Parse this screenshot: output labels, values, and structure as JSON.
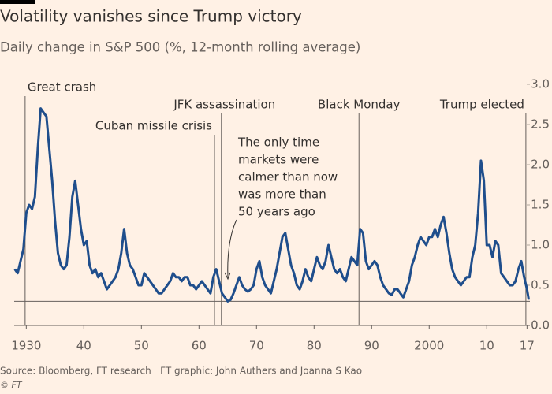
{
  "chart_data": {
    "type": "line",
    "title": "Volatility vanishes since Trump victory",
    "subtitle": "Daily change in S&P 500 (%, 12-month rolling average)",
    "x": [
      1928,
      1928.5,
      1929,
      1929.5,
      1930,
      1930.5,
      1931,
      1931.5,
      1932,
      1932.5,
      1933,
      1933.5,
      1934,
      1934.5,
      1935,
      1935.5,
      1936,
      1936.5,
      1937,
      1937.5,
      1938,
      1938.5,
      1939,
      1939.5,
      1940,
      1940.5,
      1941,
      1941.5,
      1942,
      1942.5,
      1943,
      1943.5,
      1944,
      1944.5,
      1945,
      1945.5,
      1946,
      1946.5,
      1947,
      1947.5,
      1948,
      1948.5,
      1949,
      1949.5,
      1950,
      1950.5,
      1951,
      1951.5,
      1952,
      1952.5,
      1953,
      1953.5,
      1954,
      1954.5,
      1955,
      1955.5,
      1956,
      1956.5,
      1957,
      1957.5,
      1958,
      1958.5,
      1959,
      1959.5,
      1960,
      1960.5,
      1961,
      1961.5,
      1962,
      1962.5,
      1963,
      1963.5,
      1964,
      1964.5,
      1965,
      1965.5,
      1966,
      1966.5,
      1967,
      1967.5,
      1968,
      1968.5,
      1969,
      1969.5,
      1970,
      1970.5,
      1971,
      1971.5,
      1972,
      1972.5,
      1973,
      1973.5,
      1974,
      1974.5,
      1975,
      1975.5,
      1976,
      1976.5,
      1977,
      1977.5,
      1978,
      1978.5,
      1979,
      1979.5,
      1980,
      1980.5,
      1981,
      1981.5,
      1982,
      1982.5,
      1983,
      1983.5,
      1984,
      1984.5,
      1985,
      1985.5,
      1986,
      1986.5,
      1987,
      1987.5,
      1988,
      1988.5,
      1989,
      1989.5,
      1990,
      1990.5,
      1991,
      1991.5,
      1992,
      1992.5,
      1993,
      1993.5,
      1994,
      1994.5,
      1995,
      1995.5,
      1996,
      1996.5,
      1997,
      1997.5,
      1998,
      1998.5,
      1999,
      1999.5,
      2000,
      2000.5,
      2001,
      2001.5,
      2002,
      2002.5,
      2003,
      2003.5,
      2004,
      2004.5,
      2005,
      2005.5,
      2006,
      2006.5,
      2007,
      2007.5,
      2008,
      2008.5,
      2009,
      2009.5,
      2010,
      2010.5,
      2011,
      2011.5,
      2012,
      2012.5,
      2013,
      2013.5,
      2014,
      2014.5,
      2015,
      2015.5,
      2016,
      2016.5,
      2017,
      2017.3
    ],
    "values": [
      0.7,
      0.65,
      0.8,
      0.95,
      1.4,
      1.5,
      1.45,
      1.6,
      2.2,
      2.7,
      2.65,
      2.6,
      2.2,
      1.8,
      1.3,
      0.9,
      0.75,
      0.7,
      0.75,
      1.1,
      1.6,
      1.8,
      1.5,
      1.2,
      1.0,
      1.05,
      0.75,
      0.65,
      0.7,
      0.6,
      0.65,
      0.55,
      0.45,
      0.5,
      0.55,
      0.6,
      0.7,
      0.9,
      1.2,
      0.9,
      0.75,
      0.7,
      0.6,
      0.5,
      0.5,
      0.65,
      0.6,
      0.55,
      0.5,
      0.45,
      0.4,
      0.4,
      0.45,
      0.5,
      0.55,
      0.65,
      0.6,
      0.6,
      0.55,
      0.6,
      0.6,
      0.5,
      0.5,
      0.45,
      0.5,
      0.55,
      0.5,
      0.45,
      0.4,
      0.6,
      0.7,
      0.55,
      0.4,
      0.35,
      0.3,
      0.32,
      0.4,
      0.5,
      0.6,
      0.5,
      0.45,
      0.42,
      0.45,
      0.5,
      0.7,
      0.8,
      0.6,
      0.5,
      0.45,
      0.4,
      0.55,
      0.7,
      0.9,
      1.1,
      1.15,
      0.95,
      0.75,
      0.65,
      0.5,
      0.45,
      0.55,
      0.7,
      0.6,
      0.55,
      0.7,
      0.85,
      0.75,
      0.7,
      0.8,
      1.0,
      0.85,
      0.7,
      0.65,
      0.7,
      0.6,
      0.55,
      0.7,
      0.85,
      0.8,
      0.75,
      1.2,
      1.15,
      0.8,
      0.7,
      0.75,
      0.8,
      0.75,
      0.6,
      0.5,
      0.45,
      0.4,
      0.38,
      0.45,
      0.45,
      0.4,
      0.35,
      0.45,
      0.55,
      0.75,
      0.85,
      1.0,
      1.1,
      1.05,
      1.0,
      1.1,
      1.1,
      1.2,
      1.1,
      1.25,
      1.35,
      1.15,
      0.9,
      0.7,
      0.6,
      0.55,
      0.5,
      0.55,
      0.6,
      0.6,
      0.85,
      1.0,
      1.4,
      2.05,
      1.8,
      1.0,
      1.0,
      0.85,
      1.05,
      1.0,
      0.65,
      0.6,
      0.55,
      0.5,
      0.5,
      0.55,
      0.7,
      0.8,
      0.6,
      0.45,
      0.32
    ],
    "color": "#1f4e8c",
    "xlim": [
      1927.9,
      2017.5
    ],
    "xticks": [
      1930,
      {
        "value": 1940,
        "label": "40"
      },
      {
        "value": 1950,
        "label": "50"
      },
      {
        "value": 1960,
        "label": "60"
      },
      {
        "value": 1970,
        "label": "70"
      },
      {
        "value": 1980,
        "label": "80"
      },
      {
        "value": 1990,
        "label": "90"
      },
      2000,
      {
        "value": 2010,
        "label": "10"
      },
      {
        "value": 2017,
        "label": "17"
      }
    ],
    "ylim": [
      0,
      3
    ],
    "yticks": [
      {
        "value": 0,
        "label": "0.0"
      },
      0.5,
      {
        "value": 1,
        "label": "1.0"
      },
      1.5,
      {
        "value": 2,
        "label": "2.0"
      },
      2.5,
      {
        "value": 3,
        "label": "3.0"
      }
    ],
    "reference_line": 0.3,
    "events": [
      {
        "label": "Great crash",
        "x": 1929.8
      },
      {
        "label": "Cuban missile crisis",
        "x": 1962.7
      },
      {
        "label": "JFK assassination",
        "x": 1963.9
      },
      {
        "label": "Black Monday",
        "x": 1987.8
      },
      {
        "label": "Trump elected",
        "x": 2016.8
      }
    ],
    "annotation": [
      "The only time",
      "markets were",
      "calmer than now",
      "was more than",
      "50 years ago"
    ],
    "source": "Source: Bloomberg, FT research   FT graphic: John Authers and Joanna S Kao",
    "copyright": "© FT"
  }
}
